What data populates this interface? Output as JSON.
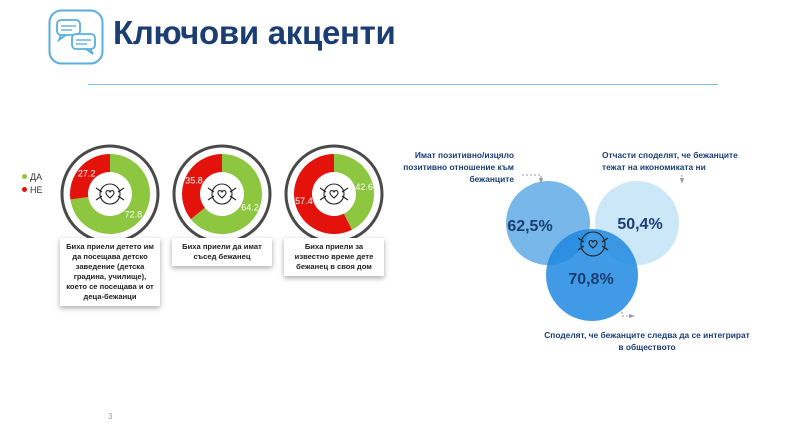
{
  "header": {
    "title": "Ключови акценти"
  },
  "legend": [
    {
      "label": "ДА",
      "color": "#8dc63f"
    },
    {
      "label": "НЕ",
      "color": "#e3120b"
    }
  ],
  "chart_data": [
    {
      "type": "pie",
      "series": [
        {
          "name": "ДА",
          "color": "#8dc63f"
        },
        {
          "name": "НЕ",
          "color": "#e3120b"
        }
      ],
      "charts": [
        {
          "caption": "Биха приели детето им да посещава детско заведение (детска градина, училище), което се посещава и от деца-бежанци",
          "values": [
            72.8,
            27.2
          ],
          "labels": [
            "72.8",
            "27.2"
          ]
        },
        {
          "caption": "Биха приели да имат съсед бежанец",
          "values": [
            64.2,
            35.8
          ],
          "labels": [
            "64.2",
            "35.8"
          ]
        },
        {
          "caption": "Биха приели за известно време дете бежанец в своя дом",
          "values": [
            42.6,
            57.4
          ],
          "labels": [
            "42.6",
            "57.4"
          ]
        }
      ]
    },
    {
      "type": "venn",
      "sets": [
        {
          "label": "Имат позитивно/изцяло позитивно отношение към бежанците",
          "value": "62,5%",
          "color": "#4a9fe2"
        },
        {
          "label": "Отчасти споделят, че бежанците тежат на икономиката ни",
          "value": "50,4%",
          "color": "#c3e3f7"
        },
        {
          "label": "Споделят, че бежанците следва да се интегрират в обществото",
          "value": "70,8%",
          "color": "#1f88e0"
        }
      ]
    }
  ],
  "footer": {
    "page_number": "3"
  }
}
